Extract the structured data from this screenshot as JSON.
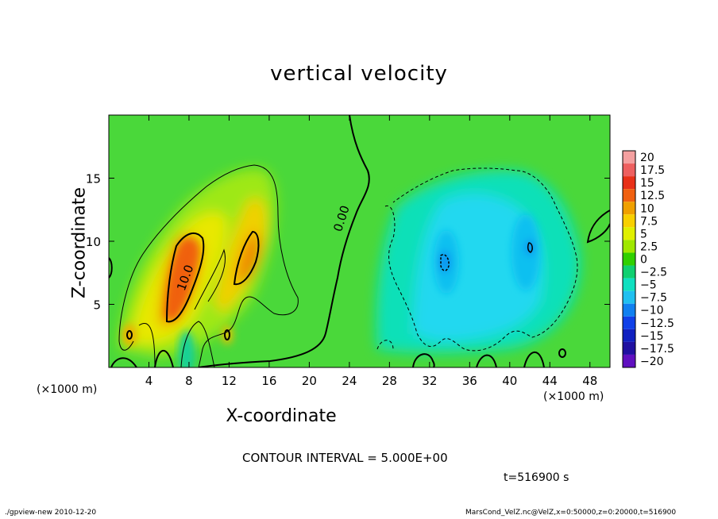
{
  "chart_data": {
    "type": "heatmap",
    "title": "vertical velocity",
    "xlabel": "X-coordinate",
    "ylabel": "Z-coordinate",
    "x_unit_label": "(×1000 m)",
    "xlim": [
      0,
      50
    ],
    "ylim": [
      0,
      20
    ],
    "x_ticks": [
      4,
      8,
      12,
      16,
      20,
      24,
      28,
      32,
      36,
      40,
      44,
      48
    ],
    "y_ticks": [
      5,
      10,
      15
    ],
    "colorbar": {
      "labels": [
        "20",
        "17.5",
        "15",
        "12.5",
        "10",
        "7.5",
        "5",
        "2.5",
        "0",
        "−2.5",
        "−5",
        "−7.5",
        "−10",
        "−12.5",
        "−15",
        "−17.5",
        "−20"
      ],
      "values": [
        20,
        17.5,
        15,
        12.5,
        10,
        7.5,
        5,
        2.5,
        0,
        -2.5,
        -5,
        -7.5,
        -10,
        -12.5,
        -15,
        -17.5,
        -20
      ],
      "colors": [
        "#f4a0a0",
        "#ee6060",
        "#e83018",
        "#f06010",
        "#f0a000",
        "#f8d000",
        "#e0f000",
        "#a0e800",
        "#30d000",
        "#10d070",
        "#10e0c0",
        "#20c0f0",
        "#1080f0",
        "#1040e8",
        "#1020c0",
        "#2010a0",
        "#6010c0"
      ]
    },
    "contour_labels": [
      "10.0",
      "0.00"
    ],
    "contour_interval": "CONTOUR INTERVAL = 5.000E+00",
    "time": "t=516900 s",
    "grid": false
  },
  "footer": {
    "left": "./gpview-new  2010-12-20",
    "right": "MarsCond_VelZ.nc@VelZ,x=0:50000,z=0:20000,t=516900"
  }
}
